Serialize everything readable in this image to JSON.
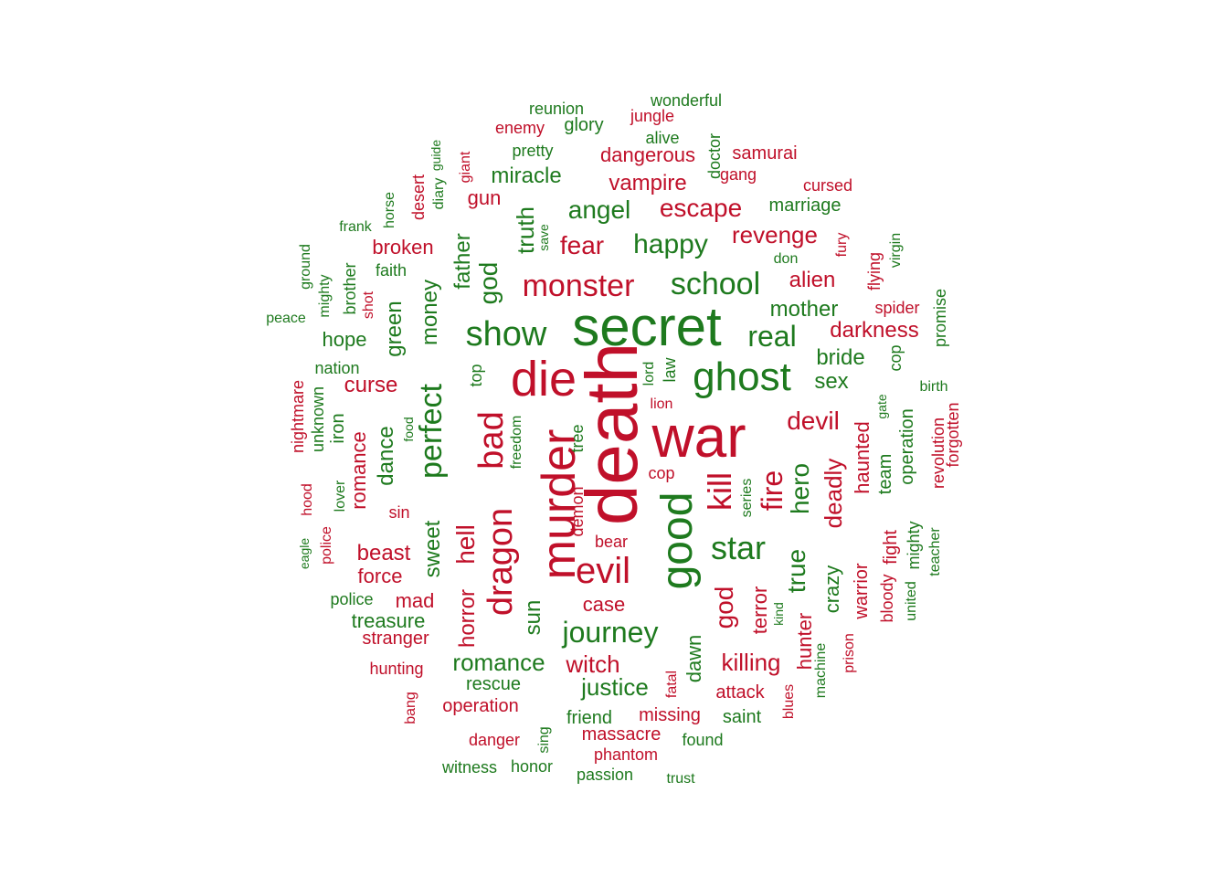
{
  "colors": {
    "red": "#c0102a",
    "green": "#1e7a1e"
  },
  "words": [
    {
      "text": "death",
      "color": "red",
      "vertical": true
    },
    {
      "text": "war",
      "color": "red",
      "vertical": false
    },
    {
      "text": "secret",
      "color": "green",
      "vertical": false
    },
    {
      "text": "die",
      "color": "red",
      "vertical": false
    },
    {
      "text": "murder",
      "color": "red",
      "vertical": true
    },
    {
      "text": "good",
      "color": "green",
      "vertical": true
    },
    {
      "text": "ghost",
      "color": "green",
      "vertical": false
    },
    {
      "text": "dragon",
      "color": "red",
      "vertical": true
    },
    {
      "text": "bad",
      "color": "red",
      "vertical": true
    },
    {
      "text": "show",
      "color": "green",
      "vertical": false
    },
    {
      "text": "evil",
      "color": "red",
      "vertical": false
    },
    {
      "text": "kill",
      "color": "red",
      "vertical": true
    },
    {
      "text": "star",
      "color": "green",
      "vertical": false
    },
    {
      "text": "fire",
      "color": "red",
      "vertical": true
    },
    {
      "text": "perfect",
      "color": "green",
      "vertical": true
    },
    {
      "text": "school",
      "color": "green",
      "vertical": false
    },
    {
      "text": "monster",
      "color": "red",
      "vertical": false
    },
    {
      "text": "journey",
      "color": "green",
      "vertical": false
    },
    {
      "text": "hell",
      "color": "red",
      "vertical": true
    },
    {
      "text": "real",
      "color": "green",
      "vertical": false
    },
    {
      "text": "god",
      "color": "green",
      "vertical": true
    },
    {
      "text": "god",
      "color": "red",
      "vertical": true
    },
    {
      "text": "devil",
      "color": "red",
      "vertical": false
    },
    {
      "text": "hero",
      "color": "green",
      "vertical": true
    },
    {
      "text": "true",
      "color": "green",
      "vertical": true
    },
    {
      "text": "happy",
      "color": "green",
      "vertical": false
    },
    {
      "text": "fear",
      "color": "red",
      "vertical": false
    },
    {
      "text": "angel",
      "color": "green",
      "vertical": false
    },
    {
      "text": "escape",
      "color": "red",
      "vertical": false
    },
    {
      "text": "revenge",
      "color": "red",
      "vertical": false
    },
    {
      "text": "truth",
      "color": "green",
      "vertical": true
    },
    {
      "text": "money",
      "color": "green",
      "vertical": true
    },
    {
      "text": "sweet",
      "color": "green",
      "vertical": true
    },
    {
      "text": "horror",
      "color": "red",
      "vertical": true
    },
    {
      "text": "sun",
      "color": "green",
      "vertical": true
    },
    {
      "text": "romance",
      "color": "green",
      "vertical": false
    },
    {
      "text": "witch",
      "color": "red",
      "vertical": false
    },
    {
      "text": "justice",
      "color": "green",
      "vertical": false
    },
    {
      "text": "killing",
      "color": "red",
      "vertical": false
    },
    {
      "text": "deadly",
      "color": "red",
      "vertical": true
    },
    {
      "text": "mother",
      "color": "green",
      "vertical": false
    },
    {
      "text": "alien",
      "color": "red",
      "vertical": false
    },
    {
      "text": "darkness",
      "color": "red",
      "vertical": false
    },
    {
      "text": "bride",
      "color": "green",
      "vertical": false
    },
    {
      "text": "sex",
      "color": "green",
      "vertical": false
    },
    {
      "text": "curse",
      "color": "red",
      "vertical": false
    },
    {
      "text": "beast",
      "color": "red",
      "vertical": false
    },
    {
      "text": "dance",
      "color": "green",
      "vertical": true
    },
    {
      "text": "romance",
      "color": "red",
      "vertical": true
    },
    {
      "text": "green",
      "color": "green",
      "vertical": true
    },
    {
      "text": "haunted",
      "color": "red",
      "vertical": true
    },
    {
      "text": "crazy",
      "color": "green",
      "vertical": true
    },
    {
      "text": "terror",
      "color": "red",
      "vertical": true
    },
    {
      "text": "dawn",
      "color": "green",
      "vertical": true
    },
    {
      "text": "hunter",
      "color": "red",
      "vertical": true
    },
    {
      "text": "case",
      "color": "red",
      "vertical": false
    },
    {
      "text": "treasure",
      "color": "green",
      "vertical": false
    },
    {
      "text": "vampire",
      "color": "red",
      "vertical": false
    },
    {
      "text": "dangerous",
      "color": "red",
      "vertical": false
    },
    {
      "text": "miracle",
      "color": "green",
      "vertical": false
    },
    {
      "text": "gun",
      "color": "red",
      "vertical": false
    },
    {
      "text": "father",
      "color": "green",
      "vertical": true
    },
    {
      "text": "broken",
      "color": "red",
      "vertical": false
    },
    {
      "text": "hope",
      "color": "green",
      "vertical": false
    },
    {
      "text": "force",
      "color": "red",
      "vertical": false
    },
    {
      "text": "mad",
      "color": "red",
      "vertical": false
    },
    {
      "text": "stranger",
      "color": "red",
      "vertical": false
    },
    {
      "text": "rescue",
      "color": "green",
      "vertical": false
    },
    {
      "text": "operation",
      "color": "red",
      "vertical": false
    },
    {
      "text": "friend",
      "color": "green",
      "vertical": false
    },
    {
      "text": "missing",
      "color": "red",
      "vertical": false
    },
    {
      "text": "attack",
      "color": "red",
      "vertical": false
    },
    {
      "text": "saint",
      "color": "green",
      "vertical": false
    },
    {
      "text": "massacre",
      "color": "red",
      "vertical": false
    },
    {
      "text": "phantom",
      "color": "red",
      "vertical": false
    },
    {
      "text": "danger",
      "color": "red",
      "vertical": false
    },
    {
      "text": "warrior",
      "color": "red",
      "vertical": true
    },
    {
      "text": "fight",
      "color": "red",
      "vertical": true
    },
    {
      "text": "team",
      "color": "green",
      "vertical": true
    },
    {
      "text": "operation",
      "color": "green",
      "vertical": true
    },
    {
      "text": "marriage",
      "color": "green",
      "vertical": false
    },
    {
      "text": "doctor",
      "color": "green",
      "vertical": true
    },
    {
      "text": "iron",
      "color": "green",
      "vertical": true
    },
    {
      "text": "unknown",
      "color": "green",
      "vertical": true
    },
    {
      "text": "nightmare",
      "color": "red",
      "vertical": true
    },
    {
      "text": "police",
      "color": "green",
      "vertical": false
    },
    {
      "text": "cop",
      "color": "green",
      "vertical": true
    },
    {
      "text": "cop",
      "color": "red",
      "vertical": false
    },
    {
      "text": "bear",
      "color": "red",
      "vertical": false
    },
    {
      "text": "top",
      "color": "green",
      "vertical": true
    },
    {
      "text": "demon",
      "color": "red",
      "vertical": true
    },
    {
      "text": "tree",
      "color": "green",
      "vertical": true
    },
    {
      "text": "law",
      "color": "green",
      "vertical": true
    },
    {
      "text": "lord",
      "color": "green",
      "vertical": true
    },
    {
      "text": "lion",
      "color": "red",
      "vertical": false
    },
    {
      "text": "hunting",
      "color": "red",
      "vertical": false
    },
    {
      "text": "samurai",
      "color": "red",
      "vertical": false
    },
    {
      "text": "gang",
      "color": "red",
      "vertical": false
    },
    {
      "text": "jungle",
      "color": "red",
      "vertical": false
    },
    {
      "text": "alive",
      "color": "green",
      "vertical": false
    },
    {
      "text": "glory",
      "color": "green",
      "vertical": false
    },
    {
      "text": "enemy",
      "color": "red",
      "vertical": false
    },
    {
      "text": "reunion",
      "color": "green",
      "vertical": false
    },
    {
      "text": "wonderful",
      "color": "green",
      "vertical": false
    },
    {
      "text": "pretty",
      "color": "green",
      "vertical": false
    },
    {
      "text": "cursed",
      "color": "red",
      "vertical": false
    },
    {
      "text": "don",
      "color": "green",
      "vertical": false
    },
    {
      "text": "fury",
      "color": "red",
      "vertical": true
    },
    {
      "text": "flying",
      "color": "red",
      "vertical": true
    },
    {
      "text": "virgin",
      "color": "green",
      "vertical": true
    },
    {
      "text": "spider",
      "color": "red",
      "vertical": false
    },
    {
      "text": "promise",
      "color": "green",
      "vertical": true
    },
    {
      "text": "birth",
      "color": "green",
      "vertical": false
    },
    {
      "text": "gate",
      "color": "green",
      "vertical": true
    },
    {
      "text": "revolution",
      "color": "red",
      "vertical": true
    },
    {
      "text": "forgotten",
      "color": "red",
      "vertical": true
    },
    {
      "text": "mighty",
      "color": "green",
      "vertical": true
    },
    {
      "text": "bloody",
      "color": "red",
      "vertical": true
    },
    {
      "text": "united",
      "color": "green",
      "vertical": true
    },
    {
      "text": "teacher",
      "color": "green",
      "vertical": true
    },
    {
      "text": "prison",
      "color": "red",
      "vertical": true
    },
    {
      "text": "machine",
      "color": "green",
      "vertical": true
    },
    {
      "text": "blues",
      "color": "red",
      "vertical": true
    },
    {
      "text": "kind",
      "color": "green",
      "vertical": true
    },
    {
      "text": "series",
      "color": "green",
      "vertical": true
    },
    {
      "text": "fatal",
      "color": "red",
      "vertical": true
    },
    {
      "text": "found",
      "color": "green",
      "vertical": false
    },
    {
      "text": "trust",
      "color": "green",
      "vertical": false
    },
    {
      "text": "passion",
      "color": "green",
      "vertical": false
    },
    {
      "text": "honor",
      "color": "green",
      "vertical": false
    },
    {
      "text": "witness",
      "color": "green",
      "vertical": false
    },
    {
      "text": "sing",
      "color": "green",
      "vertical": true
    },
    {
      "text": "bang",
      "color": "red",
      "vertical": true
    },
    {
      "text": "sin",
      "color": "red",
      "vertical": false
    },
    {
      "text": "lover",
      "color": "green",
      "vertical": true
    },
    {
      "text": "hood",
      "color": "red",
      "vertical": true
    },
    {
      "text": "eagle",
      "color": "green",
      "vertical": true
    },
    {
      "text": "police",
      "color": "red",
      "vertical": true
    },
    {
      "text": "food",
      "color": "green",
      "vertical": true
    },
    {
      "text": "freedom",
      "color": "green",
      "vertical": true
    },
    {
      "text": "nation",
      "color": "green",
      "vertical": false
    },
    {
      "text": "peace",
      "color": "green",
      "vertical": false
    },
    {
      "text": "mighty",
      "color": "green",
      "vertical": true
    },
    {
      "text": "ground",
      "color": "green",
      "vertical": true
    },
    {
      "text": "brother",
      "color": "green",
      "vertical": true
    },
    {
      "text": "shot",
      "color": "red",
      "vertical": true
    },
    {
      "text": "faith",
      "color": "green",
      "vertical": false
    },
    {
      "text": "frank",
      "color": "green",
      "vertical": false
    },
    {
      "text": "horse",
      "color": "green",
      "vertical": true
    },
    {
      "text": "desert",
      "color": "red",
      "vertical": true
    },
    {
      "text": "diary",
      "color": "green",
      "vertical": true
    },
    {
      "text": "guide",
      "color": "green",
      "vertical": true
    },
    {
      "text": "giant",
      "color": "red",
      "vertical": true
    },
    {
      "text": "save",
      "color": "green",
      "vertical": true
    }
  ]
}
